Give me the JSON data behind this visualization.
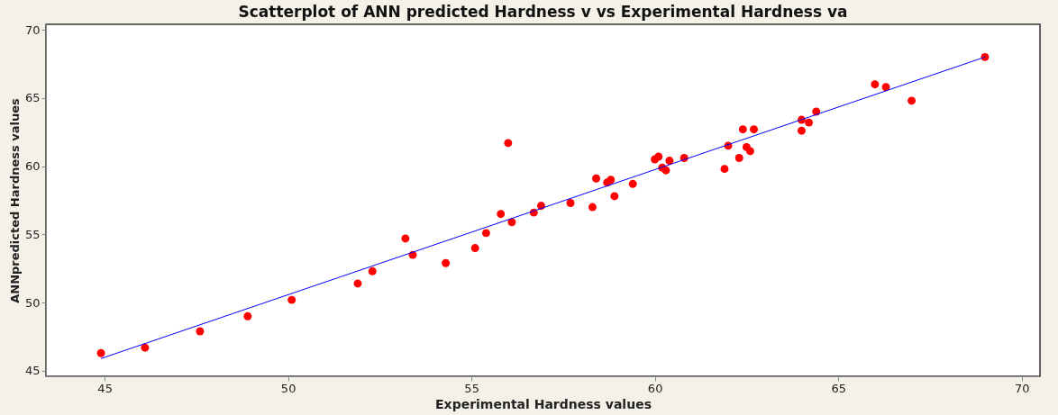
{
  "chart_data": {
    "type": "scatter",
    "title": "Scatterplot of ANN predicted Hardness v vs Experimental Hardness va",
    "xlabel": "Experimental Hardness values",
    "ylabel": "ANNpredicted Hardness values",
    "xlim": [
      43.4,
      70.5
    ],
    "ylim": [
      44.6,
      70.4
    ],
    "xticks": [
      45,
      50,
      55,
      60,
      65,
      70
    ],
    "yticks": [
      45,
      50,
      55,
      60,
      65,
      70
    ],
    "grid": false,
    "series": [
      {
        "color": "#ff0000",
        "marker": "circle",
        "x": [
          44.9,
          46.1,
          47.6,
          48.9,
          50.1,
          51.9,
          52.3,
          53.2,
          53.4,
          54.3,
          55.1,
          55.4,
          55.8,
          56.1,
          56.0,
          56.7,
          56.9,
          57.7,
          58.3,
          58.4,
          58.7,
          58.8,
          58.9,
          59.4,
          60.0,
          60.1,
          60.2,
          60.3,
          60.4,
          60.8,
          61.9,
          62.0,
          62.3,
          62.4,
          62.5,
          62.6,
          62.7,
          64.0,
          64.0,
          64.2,
          64.4,
          66.0,
          66.3,
          67.0,
          69.0
        ],
        "values": [
          46.3,
          46.7,
          47.9,
          49.0,
          50.2,
          51.4,
          52.3,
          54.7,
          53.5,
          52.9,
          54.0,
          55.1,
          56.5,
          55.9,
          61.7,
          56.6,
          57.1,
          57.3,
          57.0,
          59.1,
          58.8,
          59.0,
          57.8,
          58.7,
          60.5,
          60.7,
          59.9,
          59.7,
          60.4,
          60.6,
          59.8,
          61.5,
          60.6,
          62.7,
          61.4,
          61.1,
          62.7,
          62.6,
          63.4,
          63.2,
          64.0,
          66.0,
          65.8,
          64.8,
          68.0
        ]
      },
      {
        "type": "line",
        "color": "#0000ff",
        "line_style": "solid",
        "marker": "none",
        "x": [
          44.9,
          69.0
        ],
        "values": [
          45.9,
          68.0
        ]
      }
    ]
  }
}
